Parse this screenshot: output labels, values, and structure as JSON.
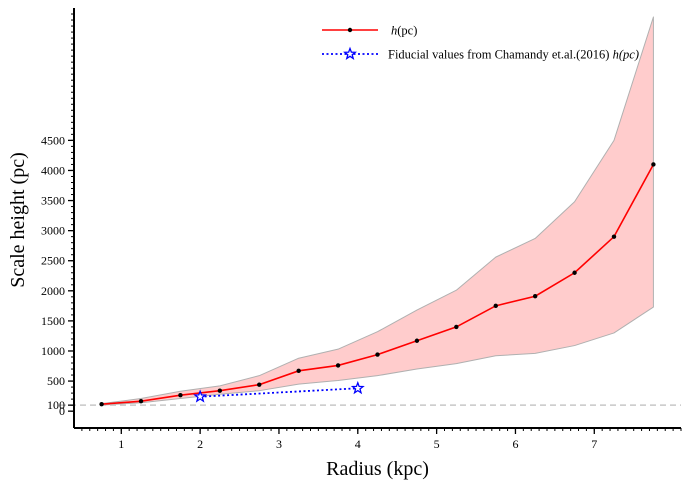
{
  "chart_data": {
    "type": "line",
    "xlabel": "Radius (kpc)",
    "ylabel": "Scale height (pc)",
    "x_ticks": [
      1,
      2,
      3,
      4,
      5,
      6,
      7
    ],
    "y_ticks": [
      0,
      100,
      500,
      1000,
      1500,
      2000,
      2500,
      3000,
      3500,
      4000,
      4500
    ],
    "xlim": [
      0.4,
      8.1
    ],
    "ylim": [
      -280,
      6700
    ],
    "grid": false,
    "legend_position": "top-center",
    "reference_line": {
      "y": 100,
      "style": "dashed",
      "color": "#c8c8c8"
    },
    "series": [
      {
        "name": "h(pc)",
        "color": "#ff0000",
        "marker": "dot",
        "x": [
          0.75,
          1.25,
          1.75,
          2.25,
          2.75,
          3.25,
          3.75,
          4.25,
          4.75,
          5.25,
          5.75,
          6.25,
          6.75,
          7.25,
          7.75
        ],
        "y": [
          115,
          165,
          265,
          340,
          440,
          670,
          760,
          940,
          1170,
          1400,
          1750,
          1910,
          2300,
          2900,
          4100
        ],
        "band_upper": [
          125,
          210,
          330,
          420,
          590,
          880,
          1030,
          1320,
          1680,
          2010,
          2560,
          2870,
          3480,
          4500,
          6550
        ],
        "band_lower": [
          100,
          140,
          210,
          280,
          340,
          450,
          510,
          590,
          700,
          790,
          920,
          960,
          1090,
          1300,
          1730
        ],
        "band_color": "#ffcccc"
      },
      {
        "name": "Fiducial values from Chamandy et.al.(2016) h(pc)",
        "color": "#0000ff",
        "marker": "star",
        "line_style": "dotted",
        "x": [
          2,
          4
        ],
        "y": [
          240,
          380
        ]
      }
    ],
    "legend": [
      {
        "label_main": "h",
        "label_rest": "(pc)"
      },
      {
        "label_main": "Fiducial values from Chamandy et.al.(2016) ",
        "label_rest": "h(pc)"
      }
    ]
  }
}
